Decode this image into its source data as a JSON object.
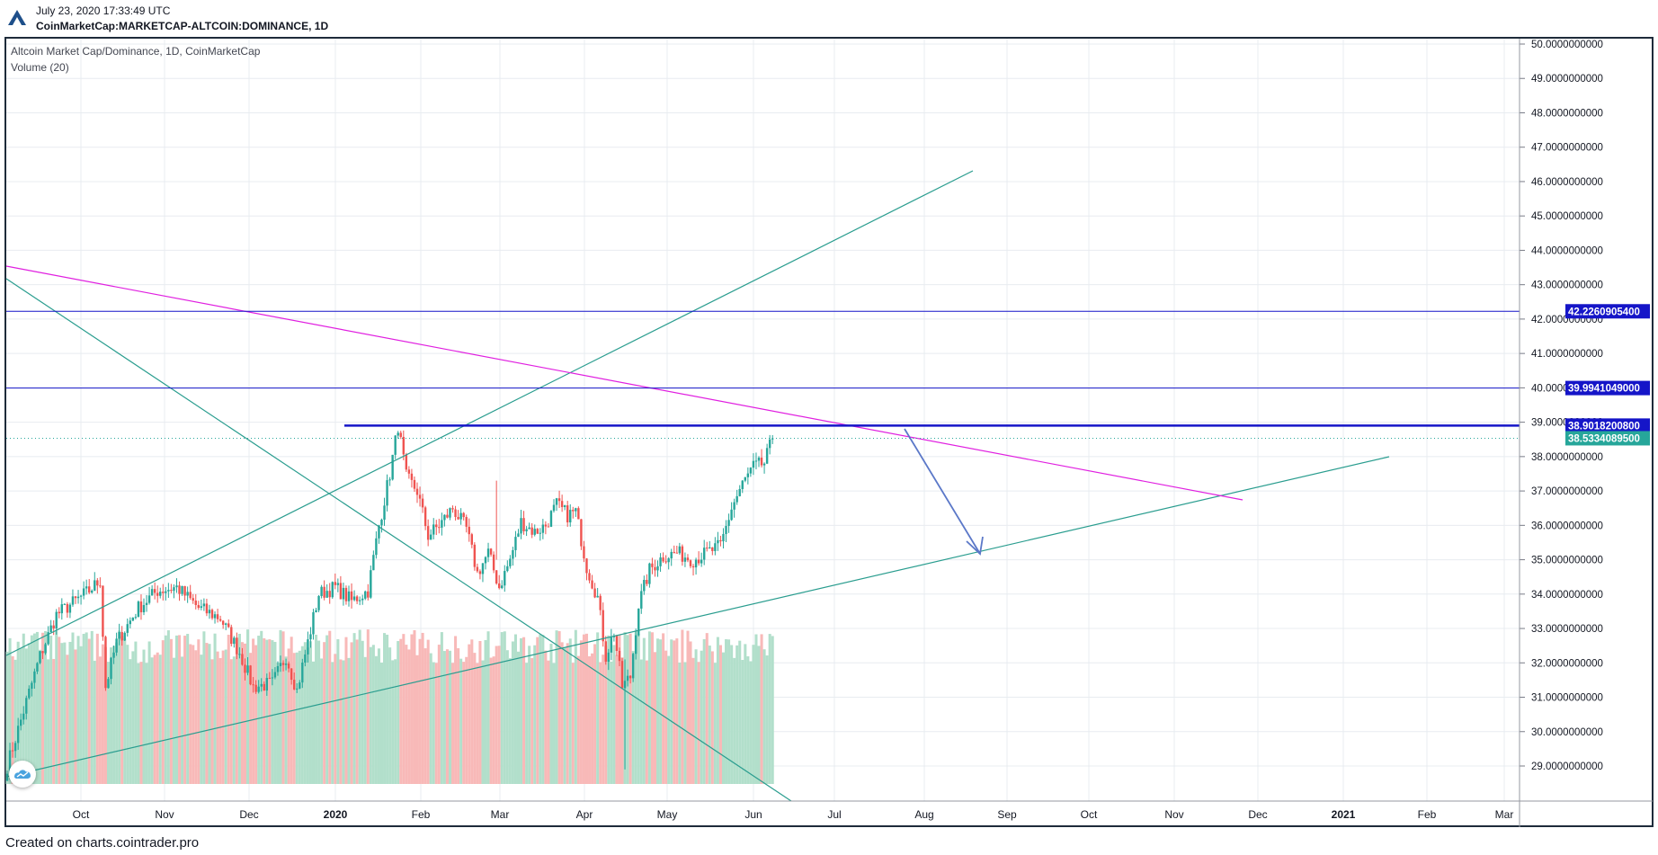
{
  "header": {
    "timestamp": "July 23, 2020 17:33:49 UTC",
    "symbol": "CoinMarketCap:MARKETCAP-ALTCOIN:DOMINANCE, 1D"
  },
  "legend": {
    "title": "Altcoin Market Cap/Dominance, 1D, CoinMarketCap",
    "volume": "Volume (20)"
  },
  "footer": {
    "text": "Created on charts.cointrader.pro"
  },
  "colors": {
    "up": "#26a69a",
    "down": "#ef5350",
    "volume_up": "#b2dfcb",
    "volume_down": "#f8b9b8",
    "level_line": "#1515c8",
    "magenta_line": "#e020e0",
    "trend_line": "#2a9d8f",
    "arrow": "#5b78c8",
    "last_price": "#26a69a",
    "grid": "#e8ecf0"
  },
  "chart_data": {
    "type": "candlestick",
    "title": "Altcoin Market Cap/Dominance, 1D, CoinMarketCap",
    "ylim": [
      28.2,
      50.1
    ],
    "y_ticks": [
      "50.0000000000",
      "49.0000000000",
      "48.0000000000",
      "47.0000000000",
      "46.0000000000",
      "45.0000000000",
      "44.0000000000",
      "43.0000000000",
      "42.0000000000",
      "41.0000000000",
      "40.0000000000",
      "39.0000000000",
      "38.0000000000",
      "37.0000000000",
      "36.0000000000",
      "35.0000000000",
      "34.0000000000",
      "33.0000000000",
      "32.0000000000",
      "31.0000000000",
      "30.0000000000",
      "29.0000000000"
    ],
    "x_ticks": [
      "Oct",
      "Nov",
      "Dec",
      "2020",
      "Feb",
      "Mar",
      "Apr",
      "May",
      "Jun",
      "Jul",
      "Aug",
      "Sep",
      "Oct",
      "Nov",
      "Dec",
      "2021",
      "Feb",
      "Mar"
    ],
    "horizontal_levels": [
      {
        "label": "42.2260905400",
        "value": 42.22609054,
        "style": "solid"
      },
      {
        "label": "39.9941049000",
        "value": 39.9941049,
        "style": "solid"
      },
      {
        "label": "38.9018200800",
        "value": 38.90182008,
        "style": "bold"
      },
      {
        "label": "38.5334089500",
        "value": 38.53340895,
        "style": "last"
      }
    ],
    "anchors": [
      [
        0,
        29.0
      ],
      [
        6,
        30.6
      ],
      [
        12,
        32.2
      ],
      [
        18,
        33.4
      ],
      [
        25,
        33.8
      ],
      [
        30,
        34.1
      ],
      [
        34,
        34.4
      ],
      [
        36,
        31.3
      ],
      [
        40,
        32.6
      ],
      [
        48,
        33.6
      ],
      [
        55,
        34.1
      ],
      [
        62,
        34.2
      ],
      [
        70,
        33.6
      ],
      [
        78,
        33.3
      ],
      [
        85,
        32.3
      ],
      [
        90,
        31.3
      ],
      [
        97,
        31.4
      ],
      [
        102,
        32.2
      ],
      [
        106,
        31.2
      ],
      [
        110,
        32.6
      ],
      [
        114,
        34.0
      ],
      [
        120,
        34.2
      ],
      [
        126,
        33.8
      ],
      [
        132,
        34.1
      ],
      [
        136,
        36.0
      ],
      [
        140,
        37.5
      ],
      [
        143,
        38.9
      ],
      [
        146,
        37.4
      ],
      [
        150,
        37.0
      ],
      [
        154,
        35.7
      ],
      [
        158,
        36.0
      ],
      [
        163,
        36.5
      ],
      [
        168,
        35.9
      ],
      [
        172,
        34.6
      ],
      [
        176,
        35.2
      ],
      [
        180,
        34.2
      ],
      [
        184,
        35.0
      ],
      [
        188,
        36.1
      ],
      [
        193,
        35.8
      ],
      [
        197,
        36.0
      ],
      [
        201,
        36.6
      ],
      [
        205,
        36.3
      ],
      [
        208,
        36.4
      ],
      [
        212,
        34.8
      ],
      [
        216,
        33.9
      ],
      [
        219,
        32.2
      ],
      [
        222,
        32.9
      ],
      [
        225,
        31.3
      ],
      [
        228,
        31.6
      ],
      [
        231,
        33.7
      ],
      [
        235,
        34.7
      ],
      [
        240,
        35.1
      ],
      [
        245,
        35.2
      ],
      [
        251,
        35.0
      ],
      [
        256,
        35.2
      ],
      [
        261,
        35.4
      ],
      [
        265,
        36.5
      ],
      [
        269,
        37.2
      ],
      [
        273,
        37.7
      ],
      [
        277,
        37.8
      ],
      [
        280,
        38.53
      ]
    ],
    "volume_ylim": [
      0,
      48
    ]
  }
}
